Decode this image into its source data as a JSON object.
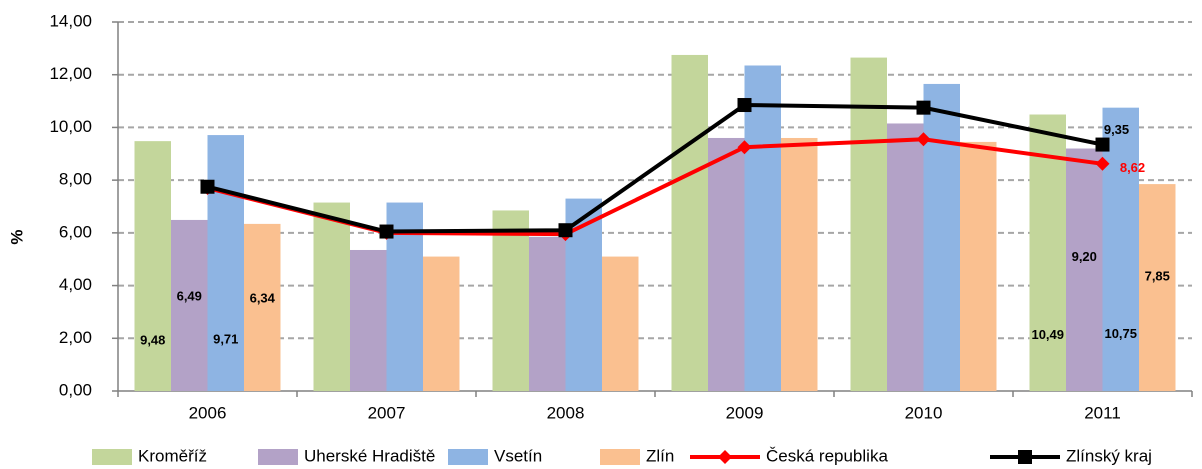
{
  "chart_data": {
    "type": "bar",
    "y_label": "%",
    "categories": [
      "2006",
      "2007",
      "2008",
      "2009",
      "2010",
      "2011"
    ],
    "ylim": [
      0,
      14
    ],
    "yticks": [
      {
        "value": 0,
        "label": "0,00"
      },
      {
        "value": 2,
        "label": "2,00"
      },
      {
        "value": 4,
        "label": "4,00"
      },
      {
        "value": 6,
        "label": "6,00"
      },
      {
        "value": 8,
        "label": "8,00"
      },
      {
        "value": 10,
        "label": "10,00"
      },
      {
        "value": 12,
        "label": "12,00"
      },
      {
        "value": 14,
        "label": "14,00"
      }
    ],
    "grid": true,
    "series": [
      {
        "name": "Kroměříž",
        "color": "#c3d69b",
        "values": [
          9.48,
          7.15,
          6.85,
          12.75,
          12.65,
          10.49
        ],
        "value_labels": [
          "9,48",
          null,
          null,
          null,
          null,
          "10,49"
        ]
      },
      {
        "name": "Uherské Hradiště",
        "color": "#b3a2c7",
        "values": [
          6.49,
          5.35,
          5.85,
          9.6,
          10.15,
          9.2
        ],
        "value_labels": [
          "6,49",
          null,
          null,
          null,
          null,
          "9,20"
        ]
      },
      {
        "name": "Vsetín",
        "color": "#8eb4e3",
        "values": [
          9.71,
          7.15,
          7.3,
          12.35,
          11.65,
          10.75
        ],
        "value_labels": [
          "9,71",
          null,
          null,
          null,
          null,
          "10,75"
        ]
      },
      {
        "name": "Zlín",
        "color": "#fac090",
        "values": [
          6.34,
          5.1,
          5.1,
          9.6,
          9.45,
          7.85
        ],
        "value_labels": [
          "6,34",
          null,
          null,
          null,
          null,
          "7,85"
        ]
      },
      {
        "name": "Česká republika",
        "type": "line",
        "marker": "diamond",
        "color": "#ff0000",
        "values": [
          7.7,
          6.0,
          5.95,
          9.25,
          9.55,
          8.62
        ],
        "value_labels": [
          null,
          null,
          null,
          null,
          null,
          "8,62"
        ]
      },
      {
        "name": "Zlínský kraj",
        "type": "line",
        "marker": "square",
        "color": "#000000",
        "values": [
          7.75,
          6.05,
          6.1,
          10.85,
          10.75,
          9.35
        ],
        "value_labels": [
          null,
          null,
          null,
          null,
          null,
          "9,35"
        ]
      }
    ]
  }
}
